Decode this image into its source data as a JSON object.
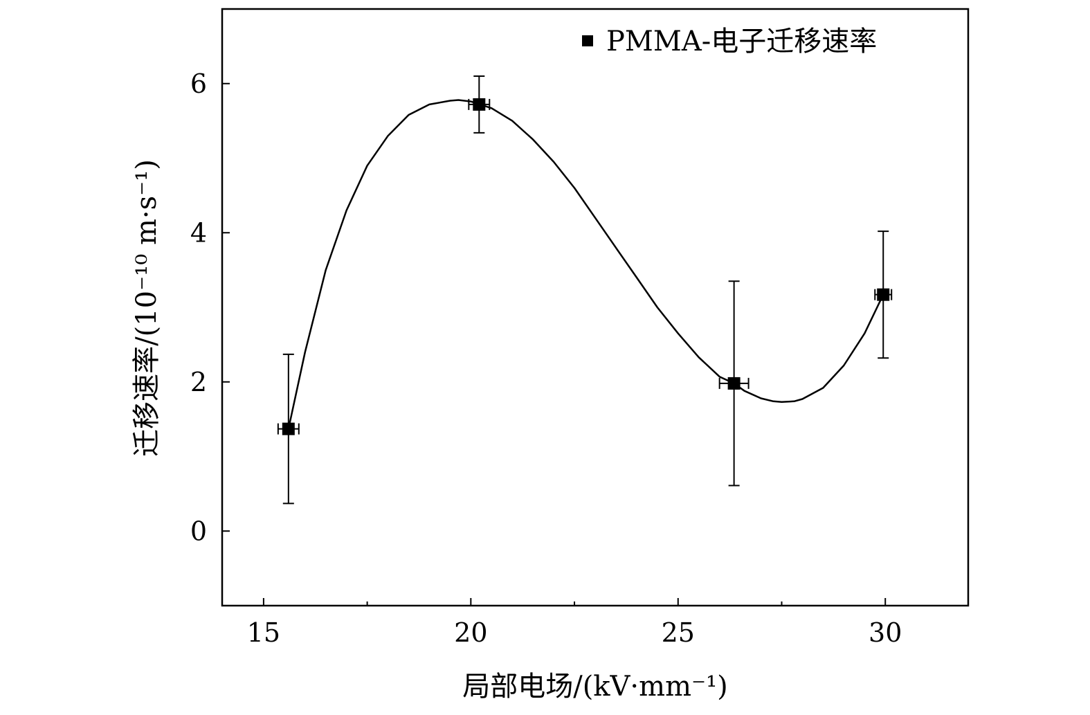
{
  "chart_data": {
    "type": "scatter",
    "xlabel": "局部电场/(kV·mm⁻¹)",
    "ylabel": "迁移速率/(10⁻¹⁰ m·s⁻¹)",
    "xlim": [
      14,
      32
    ],
    "ylim": [
      -1,
      7
    ],
    "xticks": [
      15,
      20,
      25,
      30
    ],
    "xticks_minor": [
      17.5,
      22.5,
      27.5
    ],
    "yticks": [
      0,
      2,
      4,
      6
    ],
    "grid": false,
    "legend_position": "top-right",
    "series": [
      {
        "name": "PMMA-电子迁移速率",
        "marker": "square",
        "color": "#000000",
        "points": [
          {
            "x": 15.6,
            "y": 1.37,
            "yerr": 1.0,
            "xerr": 0.25
          },
          {
            "x": 20.2,
            "y": 5.72,
            "yerr": 0.38,
            "xerr": 0.25
          },
          {
            "x": 26.35,
            "y": 1.98,
            "yerr": 1.37,
            "xerr": 0.35
          },
          {
            "x": 29.95,
            "y": 3.17,
            "yerr": 0.85,
            "xerr": 0.2
          }
        ]
      }
    ],
    "fit_curve": [
      [
        15.6,
        1.37
      ],
      [
        16.0,
        2.4
      ],
      [
        16.5,
        3.5
      ],
      [
        17.0,
        4.3
      ],
      [
        17.5,
        4.9
      ],
      [
        18.0,
        5.3
      ],
      [
        18.5,
        5.58
      ],
      [
        19.0,
        5.72
      ],
      [
        19.5,
        5.77
      ],
      [
        19.7,
        5.78
      ],
      [
        20.0,
        5.76
      ],
      [
        20.5,
        5.67
      ],
      [
        21.0,
        5.5
      ],
      [
        21.5,
        5.25
      ],
      [
        22.0,
        4.95
      ],
      [
        22.5,
        4.6
      ],
      [
        23.0,
        4.2
      ],
      [
        23.5,
        3.8
      ],
      [
        24.0,
        3.4
      ],
      [
        24.5,
        3.0
      ],
      [
        25.0,
        2.65
      ],
      [
        25.5,
        2.33
      ],
      [
        26.0,
        2.07
      ],
      [
        26.35,
        1.98
      ],
      [
        26.6,
        1.88
      ],
      [
        27.0,
        1.78
      ],
      [
        27.3,
        1.74
      ],
      [
        27.5,
        1.73
      ],
      [
        27.8,
        1.74
      ],
      [
        28.0,
        1.77
      ],
      [
        28.5,
        1.92
      ],
      [
        29.0,
        2.22
      ],
      [
        29.5,
        2.65
      ],
      [
        29.95,
        3.17
      ]
    ]
  }
}
